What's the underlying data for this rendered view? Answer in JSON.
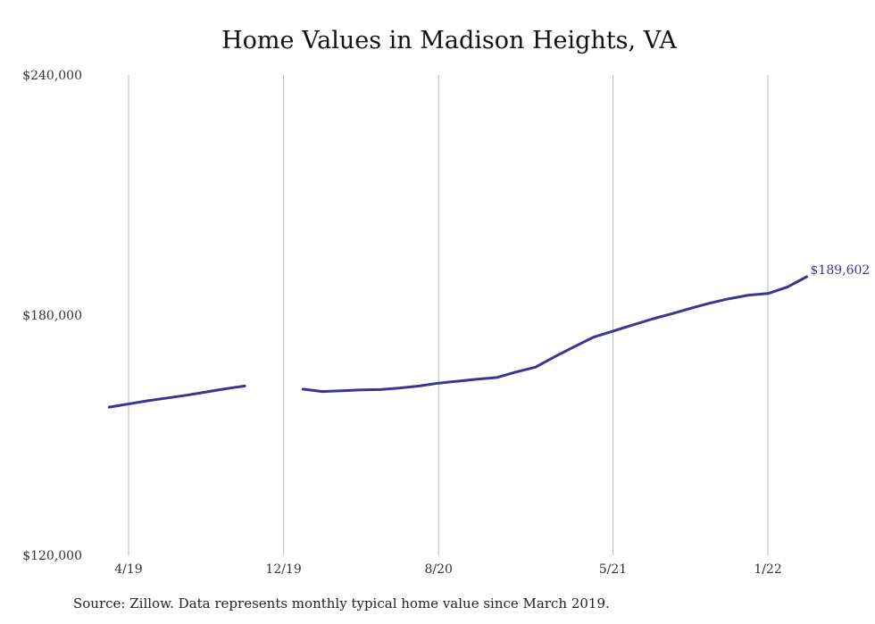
{
  "chart_data": {
    "type": "line",
    "title": "Home Values in Madison Heights, VA",
    "xlabel": "",
    "ylabel": "",
    "ylim": [
      120000,
      240000
    ],
    "xlim": [
      "2019-03",
      "2022-04"
    ],
    "y_ticks": [
      {
        "value": 120000,
        "label": "$120,000"
      },
      {
        "value": 180000,
        "label": "$180,000"
      },
      {
        "value": 240000,
        "label": "$240,000"
      }
    ],
    "x_ticks": [
      {
        "date": "2019-04",
        "label": "4/19"
      },
      {
        "date": "2019-12",
        "label": "12/19"
      },
      {
        "date": "2020-08",
        "label": "8/20"
      },
      {
        "date": "2021-05",
        "label": "5/21"
      },
      {
        "date": "2022-01",
        "label": "1/22"
      }
    ],
    "grid": {
      "vertical": true,
      "horizontal": false
    },
    "series": [
      {
        "color": "#3a3592",
        "points": [
          {
            "date": "2019-03",
            "value": 157000
          },
          {
            "date": "2019-04",
            "value": 157800
          },
          {
            "date": "2019-05",
            "value": 158600
          },
          {
            "date": "2019-06",
            "value": 159300
          },
          {
            "date": "2019-07",
            "value": 160000
          },
          {
            "date": "2019-08",
            "value": 160800
          },
          {
            "date": "2019-09",
            "value": 161600
          },
          {
            "date": "2019-10",
            "value": 162300
          },
          {
            "date": "2019-11",
            "value": null
          },
          {
            "date": "2019-12",
            "value": null
          },
          {
            "date": "2020-01",
            "value": 161500
          },
          {
            "date": "2020-02",
            "value": 160900
          },
          {
            "date": "2020-03",
            "value": 161100
          },
          {
            "date": "2020-04",
            "value": 161300
          },
          {
            "date": "2020-05",
            "value": 161400
          },
          {
            "date": "2020-06",
            "value": 161800
          },
          {
            "date": "2020-07",
            "value": 162300
          },
          {
            "date": "2020-08",
            "value": 163000
          },
          {
            "date": "2020-09",
            "value": 163500
          },
          {
            "date": "2020-10",
            "value": 164000
          },
          {
            "date": "2020-11",
            "value": 164400
          },
          {
            "date": "2020-12",
            "value": 165800
          },
          {
            "date": "2021-01",
            "value": 167000
          },
          {
            "date": "2021-02",
            "value": 169600
          },
          {
            "date": "2021-03",
            "value": 172100
          },
          {
            "date": "2021-04",
            "value": 174500
          },
          {
            "date": "2021-05",
            "value": 176000
          },
          {
            "date": "2021-06",
            "value": 177500
          },
          {
            "date": "2021-07",
            "value": 179000
          },
          {
            "date": "2021-08",
            "value": 180300
          },
          {
            "date": "2021-09",
            "value": 181700
          },
          {
            "date": "2021-10",
            "value": 183000
          },
          {
            "date": "2021-11",
            "value": 184100
          },
          {
            "date": "2021-12",
            "value": 185000
          },
          {
            "date": "2022-01",
            "value": 185400
          },
          {
            "date": "2022-02",
            "value": 187000
          },
          {
            "date": "2022-03",
            "value": 189602
          }
        ]
      }
    ],
    "annotations": [
      {
        "date": "2022-03",
        "value": 189602,
        "label": "$189,602"
      }
    ]
  },
  "source_note": "Source: Zillow. Data represents monthly typical home value since March 2019."
}
